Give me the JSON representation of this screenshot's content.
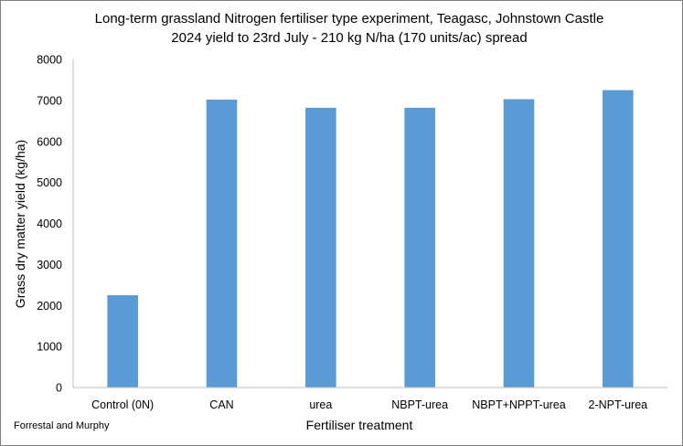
{
  "chart_data": {
    "type": "bar",
    "title": "Long-term grassland Nitrogen fertiliser type experiment, Teagasc, Johnstown Castle",
    "subtitle": "2024 yield to 23rd July - 210 kg N/ha (170 units/ac) spread",
    "xlabel": "Fertiliser treatment",
    "ylabel": "Grass dry matter yield (kg/ha)",
    "categories": [
      "Control (0N)",
      "CAN",
      "urea",
      "NBPT-urea",
      "NBPT+NPPT-urea",
      "2-NPT-urea"
    ],
    "values": [
      2250,
      7020,
      6820,
      6820,
      7030,
      7250
    ],
    "ylim": [
      0,
      8000
    ],
    "yticks": [
      0,
      1000,
      2000,
      3000,
      4000,
      5000,
      6000,
      7000,
      8000
    ],
    "grid": false,
    "legend": "none",
    "bar_color": "#5B9BD5",
    "credit": "Forrestal and Murphy"
  }
}
